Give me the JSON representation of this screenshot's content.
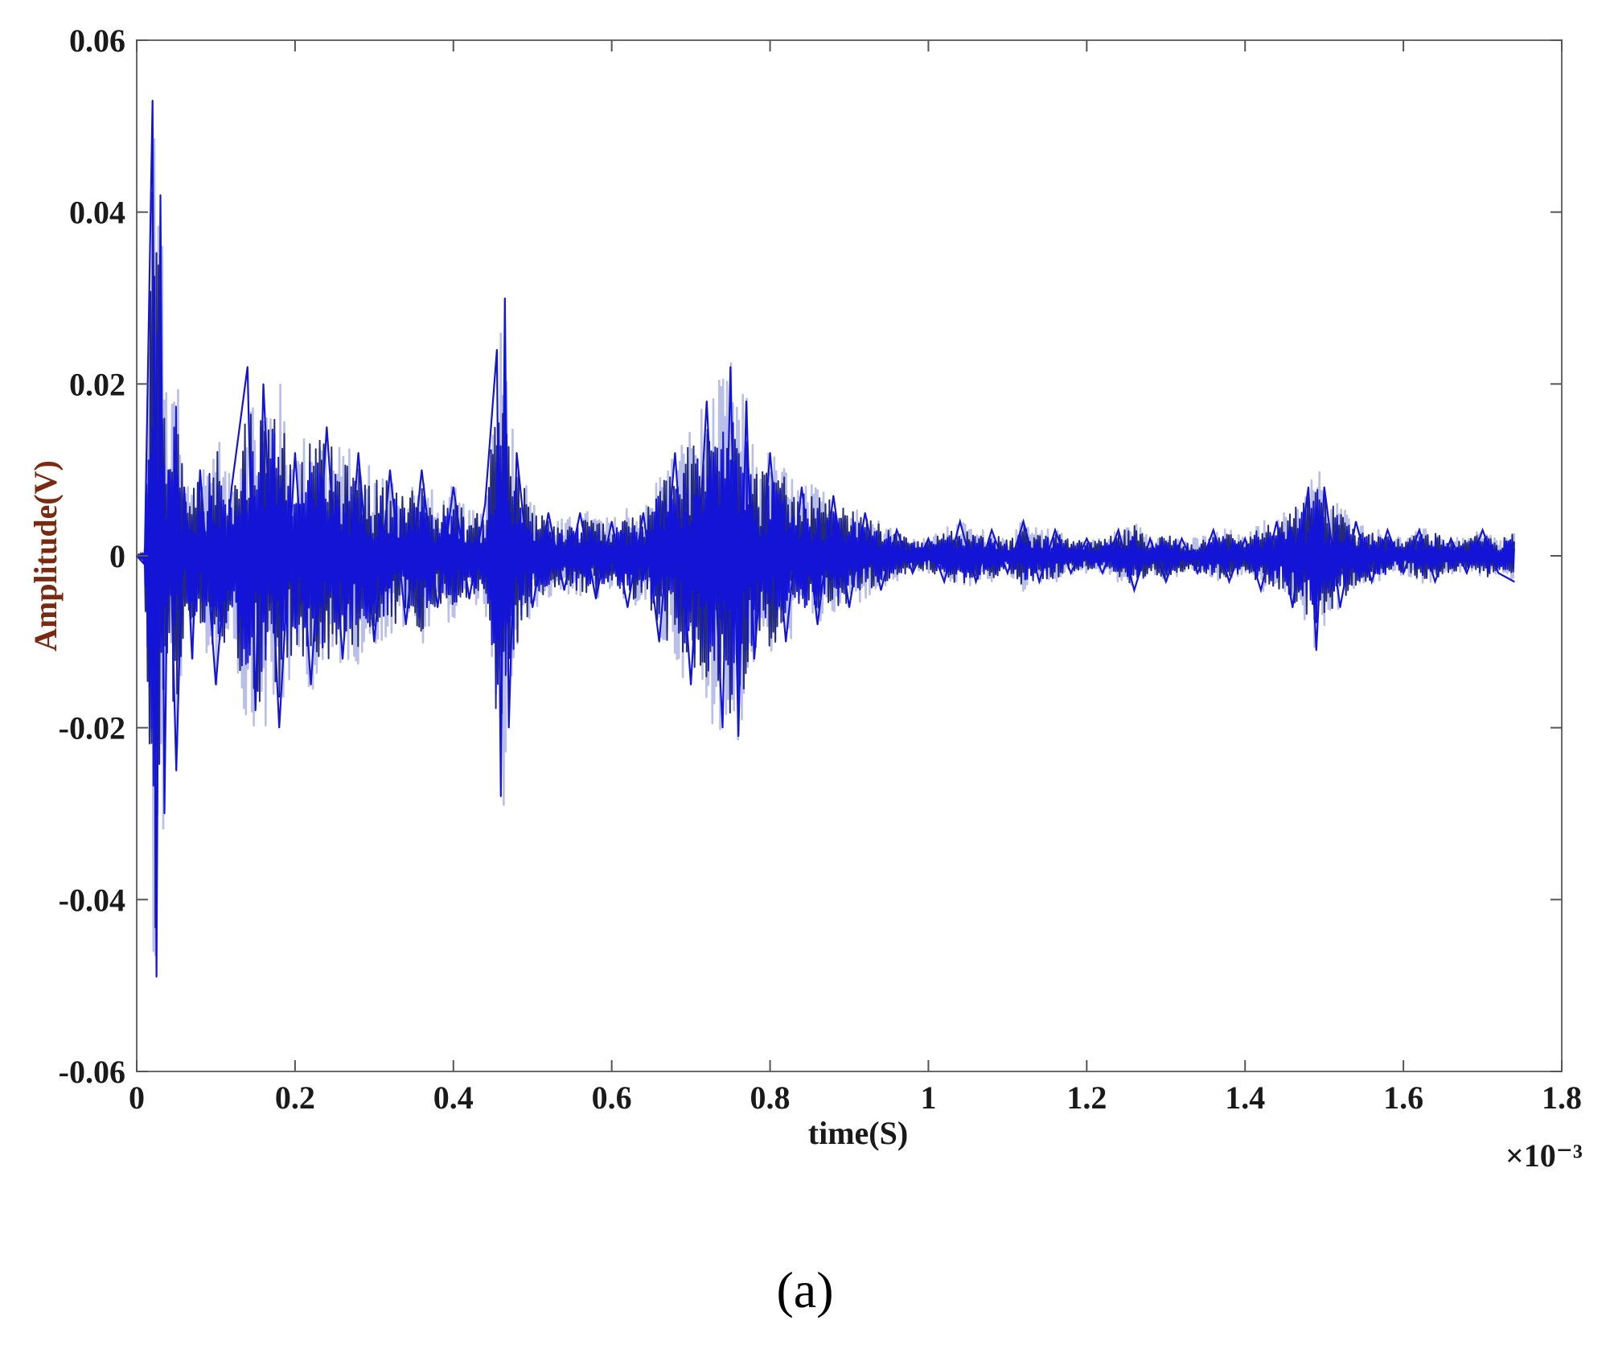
{
  "chart_data": {
    "type": "line",
    "xlabel": "time(S)",
    "ylabel": "Amplitude(V)",
    "x_multiplier": "×10⁻³",
    "xlim": [
      0,
      1.8
    ],
    "ylim": [
      -0.06,
      0.06
    ],
    "x_ticks": [
      "0",
      "0.2",
      "0.4",
      "0.6",
      "0.8",
      "1",
      "1.2",
      "1.4",
      "1.6",
      "1.8"
    ],
    "y_ticks": [
      "0.06",
      "0.04",
      "0.02",
      "0",
      "-0.02",
      "-0.04",
      "-0.06"
    ],
    "grid": false,
    "legend": "none",
    "series_color": "#1414d6",
    "series": [
      {
        "x": [
          0.0,
          0.01,
          0.02,
          0.025,
          0.03,
          0.035,
          0.04,
          0.05,
          0.06,
          0.07,
          0.08,
          0.1,
          0.12,
          0.14,
          0.15,
          0.16,
          0.18,
          0.2,
          0.22,
          0.24,
          0.26,
          0.28,
          0.3,
          0.32,
          0.34,
          0.36,
          0.38,
          0.4,
          0.42,
          0.44,
          0.455,
          0.46,
          0.465,
          0.47,
          0.48,
          0.5,
          0.52,
          0.54,
          0.56,
          0.58,
          0.6,
          0.62,
          0.64,
          0.66,
          0.68,
          0.7,
          0.72,
          0.74,
          0.75,
          0.76,
          0.77,
          0.78,
          0.8,
          0.82,
          0.84,
          0.86,
          0.88,
          0.9,
          0.92,
          0.94,
          0.96,
          0.98,
          1.0,
          1.02,
          1.04,
          1.06,
          1.08,
          1.1,
          1.12,
          1.14,
          1.16,
          1.18,
          1.2,
          1.22,
          1.24,
          1.26,
          1.28,
          1.3,
          1.32,
          1.34,
          1.36,
          1.38,
          1.4,
          1.42,
          1.44,
          1.46,
          1.48,
          1.49,
          1.5,
          1.52,
          1.54,
          1.56,
          1.58,
          1.6,
          1.62,
          1.64,
          1.66,
          1.68,
          1.7,
          1.72,
          1.74
        ],
        "y": [
          0.0,
          -0.001,
          0.053,
          -0.049,
          0.042,
          -0.03,
          0.01,
          -0.025,
          0.008,
          -0.012,
          0.01,
          -0.015,
          0.008,
          0.022,
          -0.018,
          0.02,
          -0.02,
          0.012,
          -0.015,
          0.015,
          -0.012,
          0.012,
          -0.01,
          0.01,
          -0.008,
          0.01,
          -0.006,
          0.008,
          -0.005,
          0.006,
          0.024,
          -0.028,
          0.03,
          -0.02,
          0.012,
          -0.006,
          0.005,
          -0.004,
          0.005,
          -0.005,
          0.004,
          -0.006,
          0.005,
          -0.01,
          0.012,
          -0.015,
          0.018,
          -0.02,
          0.022,
          -0.021,
          0.018,
          -0.012,
          0.012,
          -0.01,
          0.008,
          -0.008,
          0.007,
          -0.006,
          0.005,
          -0.004,
          0.003,
          -0.002,
          0.002,
          -0.003,
          0.004,
          -0.003,
          0.003,
          -0.002,
          0.004,
          -0.003,
          0.003,
          -0.002,
          0.002,
          -0.002,
          0.003,
          -0.004,
          0.002,
          -0.003,
          0.002,
          -0.002,
          0.003,
          -0.003,
          0.002,
          -0.004,
          0.004,
          -0.006,
          0.008,
          -0.011,
          0.008,
          -0.006,
          0.004,
          -0.003,
          0.003,
          -0.002,
          0.003,
          -0.003,
          0.002,
          -0.002,
          0.003,
          -0.002,
          -0.003
        ]
      }
    ]
  },
  "caption": "(a)"
}
